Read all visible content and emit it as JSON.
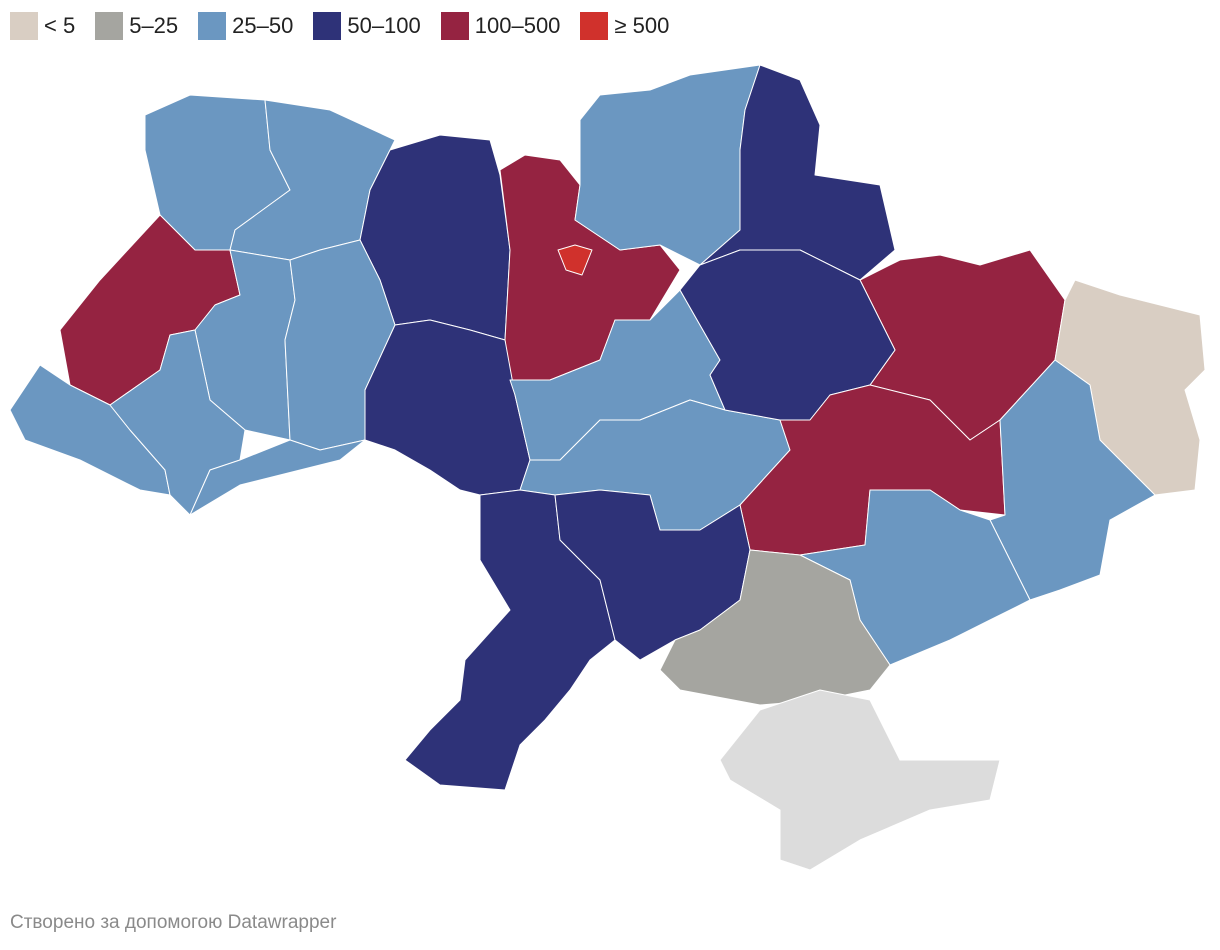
{
  "legend": [
    {
      "label": "< 5",
      "color": "#d9cec3"
    },
    {
      "label": "5–25",
      "color": "#a5a5a0"
    },
    {
      "label": "25–50",
      "color": "#6b97c1"
    },
    {
      "label": "50–100",
      "color": "#2e3278"
    },
    {
      "label": "100–500",
      "color": "#952341"
    },
    {
      "label": "≥ 500",
      "color": "#d0312c"
    }
  ],
  "no_data_color": "#dcdcdc",
  "footer": "Створено за допомогою Datawrapper"
}
